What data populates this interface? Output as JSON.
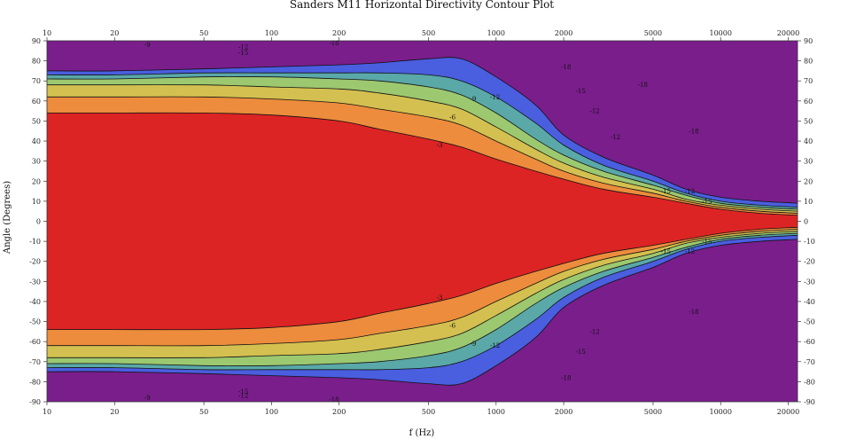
{
  "chart_data": {
    "type": "heatmap",
    "title": "Sanders M11 Horizontal Directivity Contour Plot",
    "xlabel": "f (Hz)",
    "ylabel": "Angle (Degrees)",
    "x_scale": "log",
    "xlim": [
      10,
      22000
    ],
    "ylim": [
      -90,
      90
    ],
    "x_ticks": [
      10,
      20,
      50,
      100,
      200,
      500,
      1000,
      2000,
      5000,
      10000,
      20000
    ],
    "x_tick_labels": [
      "10",
      "20",
      "50",
      "100",
      "200",
      "500",
      "1000",
      "2000",
      "5000",
      "10000",
      "20000"
    ],
    "y_ticks": [
      -90,
      -80,
      -70,
      -60,
      -50,
      -40,
      -30,
      -20,
      -10,
      0,
      10,
      20,
      30,
      40,
      50,
      60,
      70,
      80,
      90
    ],
    "y_tick_labels": [
      "-90",
      "-80",
      "-70",
      "-60",
      "-50",
      "-40",
      "-30",
      "-20",
      "-10",
      "0",
      "10",
      "20",
      "30",
      "40",
      "50",
      "60",
      "70",
      "80",
      "90"
    ],
    "contour_levels_db": [
      -3,
      -6,
      -9,
      -12,
      -15,
      -18
    ],
    "colors": {
      "band_0_to_-3": "#dc2424",
      "band_-3_to_-6": "#ec8c3c",
      "band_-6_to_-9": "#d4c050",
      "band_-9_to_-12": "#9cc870",
      "band_-12_to_-15": "#5aa8a8",
      "band_-15_to_-18": "#4a5ee0",
      "below_-18": "#7a1e8c"
    },
    "boundary_x": [
      10,
      20,
      50,
      100,
      200,
      300,
      500,
      700,
      1000,
      1500,
      2000,
      3000,
      5000,
      7000,
      10000,
      15000,
      22000
    ],
    "boundary_angle_deg": {
      "-3": [
        54,
        54,
        54,
        53,
        50,
        46,
        41,
        37,
        31,
        25,
        21,
        16,
        12,
        9,
        6,
        4,
        3
      ],
      "-6": [
        62,
        62,
        62,
        61,
        59,
        56,
        52,
        48,
        40,
        31,
        25,
        19,
        14,
        10,
        7,
        5,
        4
      ],
      "-9": [
        68,
        68,
        68,
        67,
        66,
        64,
        60,
        56,
        47,
        36,
        29,
        22,
        16,
        11,
        8,
        6,
        5
      ],
      "-12": [
        71,
        71,
        72,
        72,
        71,
        70,
        67,
        63,
        54,
        41,
        33,
        25,
        18,
        13,
        9,
        7,
        6
      ],
      "-15": [
        73,
        73,
        74,
        74,
        74,
        74,
        73,
        70,
        62,
        49,
        38,
        28,
        20,
        14,
        10,
        8,
        7
      ],
      "-18": [
        75,
        75,
        76,
        77,
        78,
        79,
        81,
        81,
        72,
        58,
        43,
        32,
        23,
        16,
        12,
        10,
        9
      ]
    },
    "annotations": [
      {
        "text": "-9",
        "x": 28,
        "y": 88
      },
      {
        "text": "-12",
        "x": 75,
        "y": 87
      },
      {
        "text": "-15",
        "x": 75,
        "y": 84
      },
      {
        "text": "-18",
        "x": 190,
        "y": 89
      },
      {
        "text": "-3",
        "x": 560,
        "y": 38
      },
      {
        "text": "-6",
        "x": 640,
        "y": 52
      },
      {
        "text": "-9",
        "x": 790,
        "y": 61
      },
      {
        "text": "-12",
        "x": 990,
        "y": 62
      },
      {
        "text": "-18",
        "x": 2050,
        "y": 77
      },
      {
        "text": "-15",
        "x": 2380,
        "y": 65
      },
      {
        "text": "-12",
        "x": 2750,
        "y": 55
      },
      {
        "text": "-12",
        "x": 3400,
        "y": 42
      },
      {
        "text": "-15",
        "x": 5700,
        "y": 15
      },
      {
        "text": "-12",
        "x": 7300,
        "y": 15
      },
      {
        "text": "-15",
        "x": 8700,
        "y": 10
      },
      {
        "text": "-18",
        "x": 7600,
        "y": 45
      },
      {
        "text": "-18",
        "x": 4500,
        "y": 68
      },
      {
        "text": "-3",
        "x": 560,
        "y": -38
      },
      {
        "text": "-6",
        "x": 640,
        "y": -52
      },
      {
        "text": "-9",
        "x": 790,
        "y": -61
      },
      {
        "text": "-12",
        "x": 990,
        "y": -62
      },
      {
        "text": "-15",
        "x": 2380,
        "y": -65
      },
      {
        "text": "-12",
        "x": 2750,
        "y": -55
      },
      {
        "text": "-18",
        "x": 2050,
        "y": -78
      },
      {
        "text": "-18",
        "x": 7600,
        "y": -45
      },
      {
        "text": "-15",
        "x": 5700,
        "y": -15
      },
      {
        "text": "-12",
        "x": 7300,
        "y": -15
      },
      {
        "text": "-15",
        "x": 8700,
        "y": -10
      },
      {
        "text": "-9",
        "x": 28,
        "y": -88
      },
      {
        "text": "-15",
        "x": 75,
        "y": -85
      },
      {
        "text": "-12",
        "x": 75,
        "y": -87
      },
      {
        "text": "-18",
        "x": 190,
        "y": -89
      }
    ]
  }
}
